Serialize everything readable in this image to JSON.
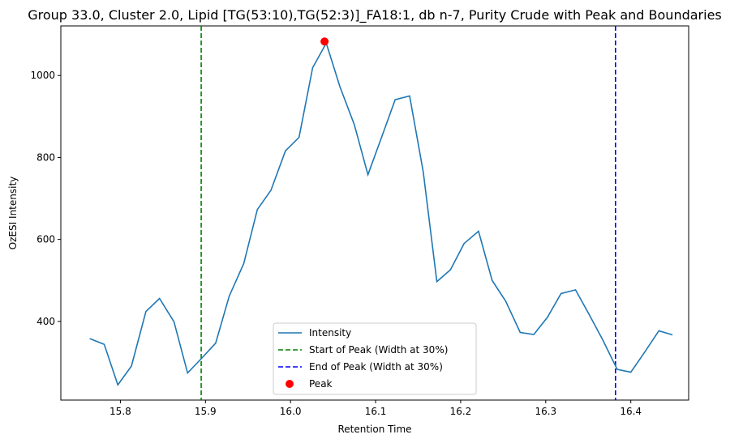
{
  "chart_data": {
    "type": "line",
    "title": "Group 33.0, Cluster 2.0, Lipid [TG(53:10),TG(52:3)]_FA18:1, db n-7, Purity Crude with Peak and Boundaries",
    "xlabel": "Retention Time",
    "ylabel": "OzESI Intensity",
    "xlim": [
      15.73,
      16.468
    ],
    "ylim": [
      208,
      1121
    ],
    "xticks": [
      15.8,
      15.9,
      16.0,
      16.1,
      16.2,
      16.3,
      16.4
    ],
    "xtick_labels": [
      "15.8",
      "15.9",
      "16.0",
      "16.1",
      "16.2",
      "16.3",
      "16.4"
    ],
    "yticks": [
      400,
      600,
      800,
      1000
    ],
    "ytick_labels": [
      "400",
      "600",
      "800",
      "1000"
    ],
    "grid": false,
    "legend_position": "lower-center",
    "series": [
      {
        "name": "Intensity",
        "color": "#1f77b4",
        "x": [
          15.764,
          15.781,
          15.797,
          15.813,
          15.83,
          15.846,
          15.863,
          15.879,
          15.896,
          15.912,
          15.928,
          15.945,
          15.961,
          15.977,
          15.994,
          16.01,
          16.026,
          16.042,
          16.058,
          16.075,
          16.091,
          16.107,
          16.123,
          16.14,
          16.156,
          16.172,
          16.188,
          16.204,
          16.221,
          16.237,
          16.253,
          16.27,
          16.286,
          16.302,
          16.318,
          16.335,
          16.351,
          16.367,
          16.384,
          16.4,
          16.416,
          16.433,
          16.449
        ],
        "y": [
          358,
          344,
          245,
          291,
          424,
          456,
          399,
          274,
          311,
          347,
          462,
          541,
          673,
          720,
          816,
          849,
          1019,
          1079,
          973,
          880,
          758,
          849,
          941,
          950,
          765,
          497,
          526,
          590,
          620,
          500,
          449,
          373,
          368,
          410,
          468,
          477,
          417,
          355,
          283,
          276,
          324,
          377,
          367
        ]
      }
    ],
    "vlines": [
      {
        "name": "Start of Peak (Width at 30%)",
        "x": 15.895,
        "color": "#008000",
        "style": "dashed"
      },
      {
        "name": "End of Peak (Width at 30%)",
        "x": 16.382,
        "color": "#0000ff",
        "style": "dashed"
      }
    ],
    "peak": {
      "name": "Peak",
      "x": 16.04,
      "y": 1083,
      "color": "#ff0000"
    }
  }
}
